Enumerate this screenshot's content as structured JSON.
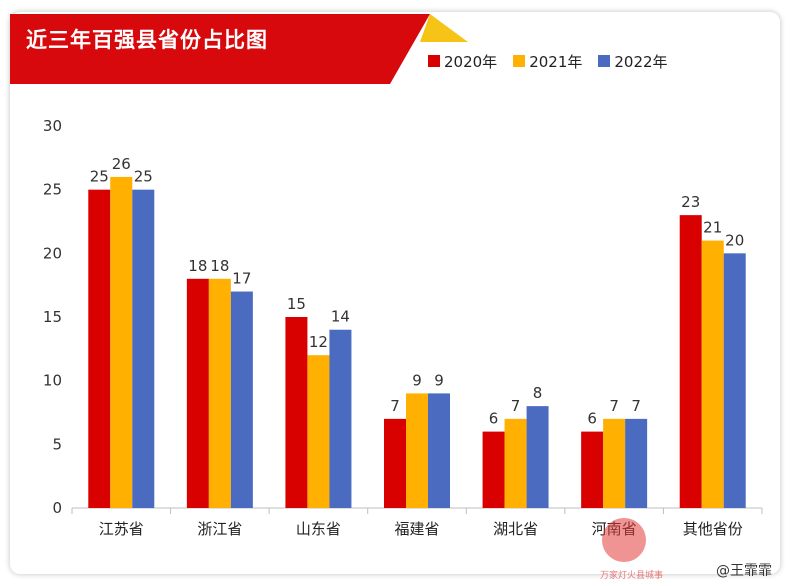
{
  "header": {
    "title": "近三年百强县省份占比图"
  },
  "legend": [
    {
      "label": "2020年",
      "color": "#d90000"
    },
    {
      "label": "2021年",
      "color": "#ffb000"
    },
    {
      "label": "2022年",
      "color": "#4a6bbf"
    }
  ],
  "chart_data": {
    "type": "bar",
    "title": "近三年百强县省份占比图",
    "categories": [
      "江苏省",
      "浙江省",
      "山东省",
      "福建省",
      "湖北省",
      "河南省",
      "其他省份"
    ],
    "series": [
      {
        "name": "2020年",
        "color": "#d90000",
        "values": [
          25,
          18,
          15,
          7,
          6,
          6,
          23
        ]
      },
      {
        "name": "2021年",
        "color": "#ffb000",
        "values": [
          26,
          18,
          12,
          9,
          7,
          7,
          21
        ]
      },
      {
        "name": "2022年",
        "color": "#4a6bbf",
        "values": [
          25,
          17,
          14,
          9,
          8,
          7,
          20
        ]
      }
    ],
    "yticks": [
      0,
      5,
      10,
      15,
      20,
      25,
      30
    ],
    "ylim": [
      0,
      30
    ],
    "grid": false,
    "legend_position": "top-right"
  },
  "watermark": {
    "text": "万家灯火县城事"
  },
  "signature": "@王霏霏"
}
